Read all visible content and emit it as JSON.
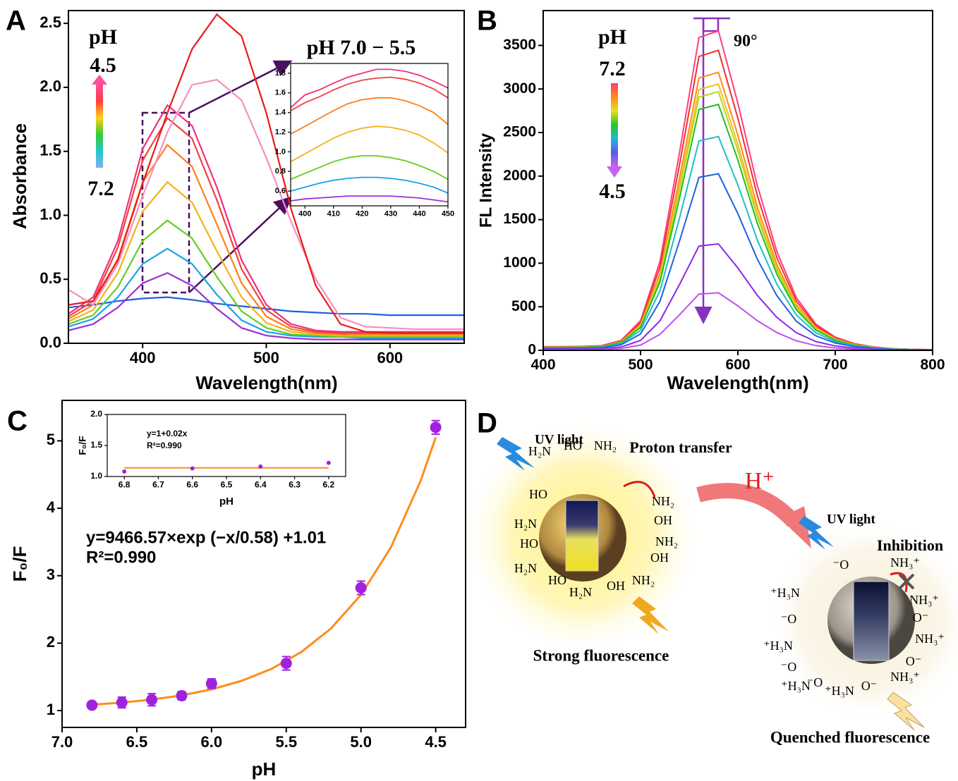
{
  "chart_data": [
    {
      "type": "line",
      "panel_label": "A",
      "x_label": "Wavelength(nm)",
      "y_label": "Absorbance",
      "xlim": [
        340,
        660
      ],
      "xticks": [
        400,
        500,
        600
      ],
      "ylim": [
        0,
        2.6
      ],
      "yticks": [
        {
          "value": 0,
          "label": "0.0"
        },
        0.5,
        {
          "value": 1,
          "label": "1.0"
        },
        1.5,
        {
          "value": 2,
          "label": "2.0"
        },
        2.5
      ],
      "colorbar": {
        "title": "pH",
        "labels": [
          4.5,
          7.2
        ],
        "colors": [
          "#ff4f9a",
          "#ff3b3b",
          "#ffd21a",
          "#33cc33",
          "#22c8c8",
          "#7fb2f0"
        ]
      },
      "x": [
        340,
        360,
        380,
        400,
        420,
        440,
        460,
        480,
        500,
        520,
        540,
        560,
        580,
        600,
        620,
        640,
        660
      ],
      "series": [
        {
          "color": "#1f5fe0",
          "values": [
            0.28,
            0.3,
            0.33,
            0.35,
            0.36,
            0.34,
            0.31,
            0.29,
            0.27,
            0.25,
            0.24,
            0.23,
            0.23,
            0.22,
            0.22,
            0.22,
            0.22
          ]
        },
        {
          "color": "#9b30d8",
          "values": [
            0.1,
            0.15,
            0.28,
            0.47,
            0.55,
            0.45,
            0.27,
            0.12,
            0.06,
            0.04,
            0.03,
            0.03,
            0.03,
            0.03,
            0.03,
            0.03,
            0.03
          ]
        },
        {
          "color": "#1aa3e8",
          "values": [
            0.13,
            0.19,
            0.36,
            0.62,
            0.74,
            0.62,
            0.38,
            0.18,
            0.09,
            0.06,
            0.05,
            0.05,
            0.04,
            0.04,
            0.04,
            0.04,
            0.04
          ]
        },
        {
          "color": "#66cc22",
          "values": [
            0.15,
            0.22,
            0.44,
            0.8,
            0.96,
            0.82,
            0.52,
            0.25,
            0.12,
            0.07,
            0.06,
            0.05,
            0.05,
            0.05,
            0.05,
            0.05,
            0.05
          ]
        },
        {
          "color": "#f2b21a",
          "values": [
            0.17,
            0.26,
            0.55,
            1.03,
            1.26,
            1.1,
            0.72,
            0.36,
            0.16,
            0.09,
            0.07,
            0.06,
            0.06,
            0.06,
            0.06,
            0.06,
            0.06
          ]
        },
        {
          "color": "#ff7f1a",
          "values": [
            0.19,
            0.3,
            0.66,
            1.26,
            1.55,
            1.38,
            0.93,
            0.47,
            0.21,
            0.11,
            0.08,
            0.07,
            0.07,
            0.07,
            0.07,
            0.07,
            0.07
          ]
        },
        {
          "color": "#f04040",
          "values": [
            0.21,
            0.33,
            0.75,
            1.43,
            1.76,
            1.6,
            1.12,
            0.58,
            0.26,
            0.13,
            0.09,
            0.08,
            0.08,
            0.08,
            0.08,
            0.08,
            0.08
          ]
        },
        {
          "color": "#f0307a",
          "values": [
            0.23,
            0.36,
            0.8,
            1.52,
            1.86,
            1.7,
            1.22,
            0.65,
            0.3,
            0.15,
            0.1,
            0.09,
            0.09,
            0.09,
            0.09,
            0.09,
            0.09
          ]
        },
        {
          "color": "#f58fc0",
          "values": [
            0.42,
            0.3,
            0.62,
            1.15,
            1.65,
            2.02,
            2.06,
            1.9,
            1.45,
            0.95,
            0.5,
            0.2,
            0.13,
            0.12,
            0.11,
            0.11,
            0.11
          ]
        },
        {
          "color": "#e81a1a",
          "values": [
            0.3,
            0.33,
            0.65,
            1.25,
            1.8,
            2.3,
            2.57,
            2.4,
            1.8,
            1.05,
            0.45,
            0.15,
            0.09,
            0.08,
            0.08,
            0.08,
            0.08
          ]
        }
      ]
    },
    {
      "type": "line",
      "title": "pH 7.0 − 5.5",
      "xlim": [
        395,
        450
      ],
      "xticks": [
        400,
        410,
        420,
        430,
        440,
        450
      ],
      "ylim": [
        0.45,
        1.9
      ],
      "yticks": [
        0.6,
        0.8,
        {
          "value": 1,
          "label": "1.0"
        },
        1.2,
        1.4,
        1.6,
        1.8
      ],
      "x": [
        395,
        400,
        405,
        410,
        415,
        420,
        425,
        430,
        435,
        440,
        445,
        450
      ],
      "series": [
        {
          "color": "#9b30d8",
          "values": [
            0.5,
            0.52,
            0.53,
            0.54,
            0.55,
            0.55,
            0.55,
            0.55,
            0.54,
            0.53,
            0.51,
            0.49
          ]
        },
        {
          "color": "#1aa3e8",
          "values": [
            0.6,
            0.64,
            0.68,
            0.71,
            0.73,
            0.74,
            0.74,
            0.73,
            0.71,
            0.68,
            0.64,
            0.58
          ]
        },
        {
          "color": "#66cc22",
          "values": [
            0.72,
            0.78,
            0.84,
            0.9,
            0.94,
            0.96,
            0.96,
            0.94,
            0.91,
            0.86,
            0.8,
            0.72
          ]
        },
        {
          "color": "#f2b21a",
          "values": [
            0.9,
            0.98,
            1.06,
            1.14,
            1.2,
            1.24,
            1.26,
            1.25,
            1.22,
            1.17,
            1.09,
            0.99
          ]
        },
        {
          "color": "#ff7f1a",
          "values": [
            1.18,
            1.26,
            1.34,
            1.42,
            1.49,
            1.53,
            1.55,
            1.55,
            1.52,
            1.47,
            1.4,
            1.28
          ]
        },
        {
          "color": "#f04040",
          "values": [
            1.42,
            1.5,
            1.56,
            1.63,
            1.69,
            1.73,
            1.75,
            1.76,
            1.74,
            1.7,
            1.64,
            1.55
          ]
        },
        {
          "color": "#f0307a",
          "values": [
            1.45,
            1.58,
            1.63,
            1.7,
            1.76,
            1.8,
            1.84,
            1.84,
            1.82,
            1.78,
            1.72,
            1.65
          ]
        }
      ]
    },
    {
      "type": "line",
      "panel_label": "B",
      "x_label": "Wavelength(nm)",
      "y_label": "FL Intensity",
      "annotation": "90°",
      "xlim": [
        400,
        800
      ],
      "xticks": [
        400,
        500,
        600,
        700,
        800
      ],
      "ylim": [
        0,
        3900
      ],
      "yticks": [
        0,
        500,
        1000,
        1500,
        2000,
        2500,
        3000,
        3500
      ],
      "colorbar": {
        "title": "pH",
        "labels": [
          7.2,
          4.5
        ],
        "colors": [
          "#ff3d6e",
          "#ff8a1a",
          "#e8e01a",
          "#28c828",
          "#20b8d8",
          "#5a5ae8",
          "#c860f0"
        ]
      },
      "x": [
        400,
        420,
        440,
        460,
        480,
        500,
        520,
        540,
        560,
        580,
        600,
        620,
        640,
        660,
        680,
        700,
        720,
        740,
        760,
        780,
        800
      ],
      "series": [
        {
          "color": "#ff3d7f",
          "values": [
            42,
            42,
            45,
            53,
            113,
            340,
            1021,
            2268,
            3591,
            3667,
            2835,
            1890,
            1134,
            605,
            302,
            151,
            76,
            38,
            19,
            11,
            8
          ]
        },
        {
          "color": "#f03030",
          "values": [
            39,
            39,
            43,
            50,
            107,
            320,
            959,
            2130,
            3373,
            3444,
            2663,
            1775,
            1065,
            568,
            284,
            142,
            71,
            36,
            18,
            11,
            7
          ]
        },
        {
          "color": "#ff8a1a",
          "values": [
            36,
            36,
            39,
            46,
            99,
            296,
            888,
            1974,
            3126,
            3191,
            2468,
            1645,
            987,
            526,
            263,
            132,
            66,
            33,
            16,
            10,
            7
          ]
        },
        {
          "color": "#f2c21a",
          "values": [
            35,
            35,
            38,
            44,
            95,
            284,
            851,
            1890,
            2993,
            3056,
            2363,
            1575,
            945,
            504,
            252,
            126,
            63,
            32,
            16,
            9,
            6
          ]
        },
        {
          "color": "#b5d91a",
          "values": [
            34,
            34,
            37,
            43,
            92,
            275,
            826,
            1836,
            2907,
            2968,
            2295,
            1530,
            918,
            490,
            245,
            122,
            61,
            31,
            15,
            9,
            6
          ]
        },
        {
          "color": "#28b828",
          "values": [
            32,
            32,
            35,
            41,
            87,
            262,
            786,
            1746,
            2765,
            2823,
            2183,
            1455,
            873,
            466,
            233,
            116,
            58,
            29,
            15,
            9,
            6
          ]
        },
        {
          "color": "#20c0c0",
          "values": [
            28,
            28,
            30,
            35,
            76,
            228,
            683,
            1518,
            2404,
            2454,
            1898,
            1265,
            759,
            405,
            202,
            101,
            51,
            25,
            13,
            8,
            5
          ]
        },
        {
          "color": "#2060e0",
          "values": [
            23,
            23,
            25,
            29,
            63,
            188,
            564,
            1254,
            1986,
            2027,
            1568,
            1045,
            627,
            334,
            167,
            84,
            42,
            21,
            10,
            6,
            4
          ]
        },
        {
          "color": "#8a2be2",
          "values": [
            14,
            14,
            15,
            18,
            38,
            113,
            340,
            756,
            1197,
            1222,
            945,
            630,
            378,
            202,
            101,
            50,
            25,
            13,
            6,
            4,
            3
          ]
        },
        {
          "color": "#c050f0",
          "values": [
            7,
            7,
            8,
            10,
            20,
            61,
            184,
            408,
            646,
            660,
            510,
            340,
            204,
            109,
            54,
            27,
            14,
            7,
            3,
            2,
            1
          ]
        }
      ]
    },
    {
      "type": "scatter",
      "panel_label": "C",
      "x_label": "pH",
      "y_label": "F₀/F",
      "equation": "y=9466.57×exp (−x/0.58) +1.01",
      "r_squared": "R²=0.990",
      "xlim": [
        7.0,
        4.3
      ],
      "xticks": [
        {
          "value": 7,
          "label": "7.0"
        },
        6.5,
        {
          "value": 6,
          "label": "6.0"
        },
        5.5,
        {
          "value": 5,
          "label": "5.0"
        },
        4.5
      ],
      "ylim": [
        0.75,
        5.6
      ],
      "yticks": [
        1,
        2,
        3,
        4,
        5
      ],
      "x": [
        6.8,
        6.6,
        6.4,
        6.2,
        6.0,
        5.5,
        5.0,
        4.5
      ],
      "series": [
        {
          "color": "#a020e0",
          "values": [
            1.08,
            1.12,
            1.16,
            1.22,
            1.4,
            1.7,
            2.82,
            5.2
          ],
          "errors": [
            0.05,
            0.08,
            0.09,
            0.06,
            0.07,
            0.1,
            0.1,
            0.1
          ]
        }
      ],
      "fit": {
        "color": "#ff8c1a",
        "x": [
          6.8,
          6.6,
          6.4,
          6.2,
          6.0,
          5.8,
          5.6,
          5.4,
          5.2,
          5.0,
          4.8,
          4.6,
          4.5
        ],
        "values": [
          1.087,
          1.118,
          1.163,
          1.226,
          1.314,
          1.44,
          1.617,
          1.867,
          2.219,
          2.717,
          3.42,
          4.41,
          5.05
        ]
      }
    },
    {
      "type": "scatter",
      "x_label": "pH",
      "y_label": "F₀/F",
      "equation": "y=1+0.02x",
      "r_squared": "R²=0.990",
      "xlim": [
        6.85,
        6.15
      ],
      "xticks": [
        6.8,
        6.7,
        6.6,
        6.5,
        6.4,
        6.3,
        6.2
      ],
      "ylim": [
        1.0,
        2.0
      ],
      "yticks": [
        {
          "value": 1,
          "label": "1.0"
        },
        1.5,
        {
          "value": 2,
          "label": "2.0"
        }
      ],
      "x": [
        6.8,
        6.6,
        6.4,
        6.2
      ],
      "series": [
        {
          "color": "#a020e0",
          "values": [
            1.08,
            1.13,
            1.16,
            1.22
          ]
        }
      ],
      "fit": {
        "color": "#ff8c1a",
        "x": [
          6.8,
          6.2
        ],
        "values": [
          1.14,
          1.14
        ]
      }
    }
  ],
  "diagram": {
    "panel_label": "D",
    "uv_light": [
      "UV light",
      "UV light"
    ],
    "proton_transfer": "Proton transfer",
    "acid": "H⁺",
    "inhibition": "Inhibition",
    "strong": "Strong fluorescence",
    "quenched": "Quenched fluorescence",
    "left_groups": [
      "H₂N",
      "HO",
      "NH₂",
      "HO",
      "NH₂",
      "H₂N",
      "OH",
      "HO",
      "NH₂",
      "OH",
      "H₂N",
      "HO",
      "H₂N",
      "OH",
      "NH₂"
    ],
    "right_groups": [
      "⁻O",
      "NH₃⁺",
      "⁺H₃N",
      "NH₃⁺",
      "⁻O",
      "O⁻",
      "⁺H₃N",
      "NH₃⁺",
      "⁻O",
      "O⁻",
      "⁺H₃N",
      "NH₃⁺",
      "⁻O",
      "⁺H₃N",
      "O⁻"
    ]
  }
}
